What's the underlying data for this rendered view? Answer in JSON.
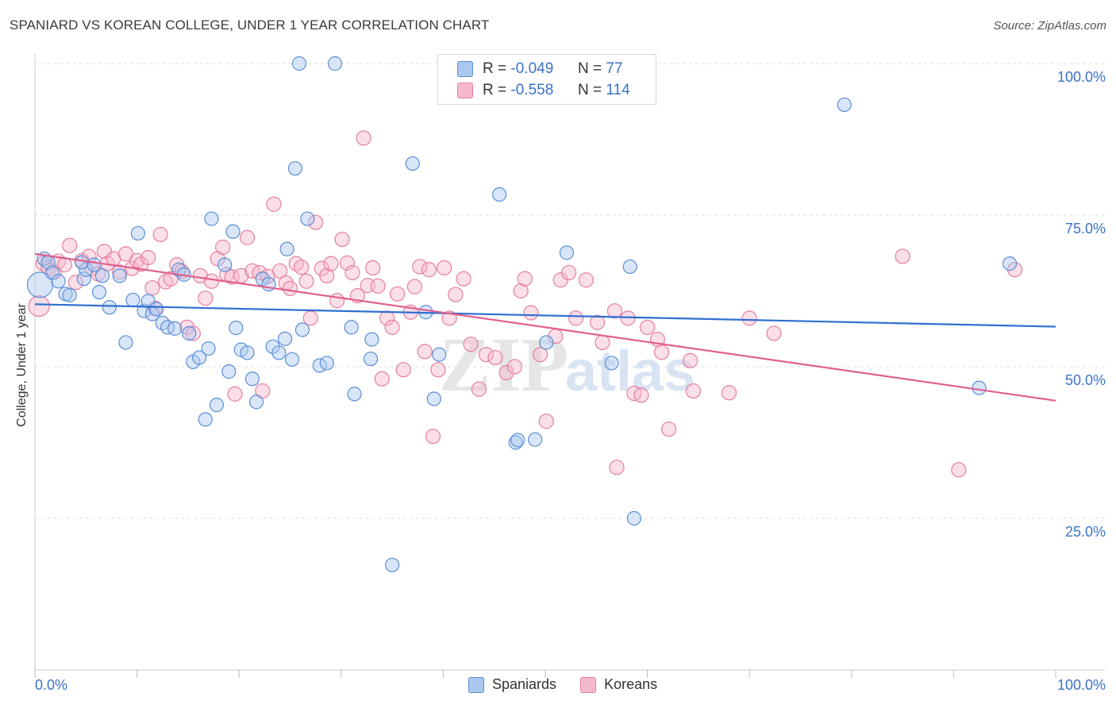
{
  "title": "SPANIARD VS KOREAN COLLEGE, UNDER 1 YEAR CORRELATION CHART",
  "source": "Source: ZipAtlas.com",
  "watermark": "ZIPatlas",
  "legend": {
    "rows": [
      {
        "r_label": "R =",
        "r_value": "-0.049",
        "n_label": "N =",
        "n_value": "77"
      },
      {
        "r_label": "R =",
        "r_value": "-0.558",
        "n_label": "N =",
        "n_value": "114"
      }
    ]
  },
  "bottom_legend": [
    "Spaniards",
    "Koreans"
  ],
  "colors": {
    "spaniards_fill": "#aac8ef",
    "spaniards_stroke": "#5a8fd6",
    "spaniards_line": "#2f6fd0",
    "koreans_fill": "#f6b8cc",
    "koreans_stroke": "#e57ea0",
    "koreans_line": "#e0608e",
    "tick_label": "#3b72c8",
    "grid": "#dddddd"
  },
  "chart_data": {
    "type": "scatter",
    "title": "SPANIARD VS KOREAN COLLEGE, UNDER 1 YEAR CORRELATION CHART",
    "xlabel": "",
    "ylabel": "College, Under 1 year",
    "xlim": [
      0,
      100
    ],
    "ylim": [
      0,
      100
    ],
    "x_tick_labels": [
      "0.0%",
      "100.0%"
    ],
    "y_tick_labels": [
      "25.0%",
      "50.0%",
      "75.0%",
      "100.0%"
    ],
    "y_ticks": [
      25,
      50,
      75,
      100
    ],
    "grid": "horizontal-dashed",
    "legend_position": "top-center",
    "series": [
      {
        "name": "Spaniards",
        "R": -0.049,
        "N": 77,
        "trend": {
          "x": [
            0,
            100
          ],
          "y": [
            60.3,
            56.6
          ]
        },
        "points": [
          [
            0.5,
            63.5
          ],
          [
            0.9,
            67.8
          ],
          [
            1.3,
            67.2
          ],
          [
            1.7,
            65.5
          ],
          [
            2.3,
            64.1
          ],
          [
            3.0,
            62.0
          ],
          [
            3.4,
            61.8
          ],
          [
            4.8,
            64.5
          ],
          [
            5.0,
            66.0
          ],
          [
            4.6,
            67.2
          ],
          [
            5.8,
            66.8
          ],
          [
            6.6,
            65.0
          ],
          [
            6.3,
            62.3
          ],
          [
            7.3,
            59.8
          ],
          [
            8.3,
            65.0
          ],
          [
            8.9,
            54.0
          ],
          [
            9.6,
            61.0
          ],
          [
            10.1,
            72.0
          ],
          [
            10.7,
            59.2
          ],
          [
            11.1,
            60.8
          ],
          [
            11.5,
            58.7
          ],
          [
            11.9,
            59.5
          ],
          [
            12.5,
            57.2
          ],
          [
            13.0,
            56.5
          ],
          [
            13.7,
            56.3
          ],
          [
            14.1,
            66.0
          ],
          [
            14.6,
            65.2
          ],
          [
            15.1,
            55.5
          ],
          [
            15.5,
            50.8
          ],
          [
            16.1,
            51.5
          ],
          [
            16.7,
            41.3
          ],
          [
            17.0,
            53.0
          ],
          [
            17.3,
            74.4
          ],
          [
            17.8,
            43.7
          ],
          [
            18.6,
            66.8
          ],
          [
            19.0,
            49.2
          ],
          [
            19.4,
            72.3
          ],
          [
            19.7,
            56.4
          ],
          [
            20.2,
            52.8
          ],
          [
            20.8,
            52.3
          ],
          [
            21.3,
            48.0
          ],
          [
            21.7,
            44.2
          ],
          [
            22.3,
            64.5
          ],
          [
            22.9,
            63.6
          ],
          [
            23.3,
            53.3
          ],
          [
            23.9,
            52.3
          ],
          [
            24.5,
            54.6
          ],
          [
            24.7,
            69.4
          ],
          [
            25.2,
            51.2
          ],
          [
            25.5,
            82.7
          ],
          [
            25.9,
            100.0
          ],
          [
            26.2,
            56.1
          ],
          [
            26.7,
            74.4
          ],
          [
            27.9,
            50.2
          ],
          [
            28.6,
            50.6
          ],
          [
            29.4,
            100.0
          ],
          [
            31.0,
            56.5
          ],
          [
            31.3,
            45.5
          ],
          [
            33.0,
            54.5
          ],
          [
            32.9,
            51.3
          ],
          [
            35.0,
            17.3
          ],
          [
            37.0,
            83.5
          ],
          [
            38.3,
            59.0
          ],
          [
            39.1,
            44.7
          ],
          [
            39.6,
            52.0
          ],
          [
            45.5,
            78.4
          ],
          [
            47.1,
            37.5
          ],
          [
            47.3,
            37.9
          ],
          [
            49.0,
            38.0
          ],
          [
            50.1,
            54.0
          ],
          [
            52.1,
            68.8
          ],
          [
            56.5,
            50.6
          ],
          [
            58.3,
            66.5
          ],
          [
            58.7,
            25.0
          ],
          [
            79.3,
            93.2
          ],
          [
            92.5,
            46.5
          ],
          [
            95.5,
            67.0
          ]
        ]
      },
      {
        "name": "Koreans",
        "R": -0.558,
        "N": 114,
        "trend": {
          "x": [
            0,
            100
          ],
          "y": [
            68.6,
            44.4
          ]
        },
        "points": [
          [
            0.4,
            60.0
          ],
          [
            0.8,
            67.0
          ],
          [
            1.3,
            66.3
          ],
          [
            1.9,
            65.6
          ],
          [
            2.3,
            67.4
          ],
          [
            2.9,
            66.8
          ],
          [
            3.4,
            70.0
          ],
          [
            4.0,
            63.9
          ],
          [
            4.6,
            67.5
          ],
          [
            5.3,
            68.2
          ],
          [
            5.6,
            66.2
          ],
          [
            6.2,
            65.3
          ],
          [
            6.8,
            69.0
          ],
          [
            7.1,
            67.0
          ],
          [
            7.7,
            67.8
          ],
          [
            8.3,
            65.6
          ],
          [
            8.9,
            68.6
          ],
          [
            9.5,
            66.2
          ],
          [
            10.0,
            67.5
          ],
          [
            10.4,
            66.9
          ],
          [
            11.1,
            68.0
          ],
          [
            11.5,
            63.0
          ],
          [
            11.8,
            59.6
          ],
          [
            12.3,
            71.8
          ],
          [
            12.8,
            64.0
          ],
          [
            13.3,
            64.5
          ],
          [
            13.9,
            66.8
          ],
          [
            14.4,
            65.7
          ],
          [
            14.9,
            56.5
          ],
          [
            15.5,
            55.5
          ],
          [
            16.2,
            65.0
          ],
          [
            16.7,
            61.3
          ],
          [
            17.3,
            64.1
          ],
          [
            17.9,
            67.8
          ],
          [
            18.4,
            69.7
          ],
          [
            18.8,
            65.2
          ],
          [
            19.3,
            64.8
          ],
          [
            19.6,
            45.5
          ],
          [
            20.2,
            65.0
          ],
          [
            20.8,
            71.3
          ],
          [
            21.3,
            65.8
          ],
          [
            22.0,
            65.5
          ],
          [
            22.3,
            46.0
          ],
          [
            22.8,
            64.9
          ],
          [
            23.4,
            76.8
          ],
          [
            24.0,
            65.8
          ],
          [
            24.6,
            63.8
          ],
          [
            25.0,
            62.9
          ],
          [
            25.6,
            67.0
          ],
          [
            26.1,
            66.4
          ],
          [
            26.6,
            64.1
          ],
          [
            27.0,
            58.0
          ],
          [
            27.5,
            73.8
          ],
          [
            28.1,
            66.2
          ],
          [
            28.6,
            65.0
          ],
          [
            29.0,
            67.0
          ],
          [
            29.6,
            60.9
          ],
          [
            30.1,
            71.0
          ],
          [
            30.6,
            67.1
          ],
          [
            31.1,
            65.5
          ],
          [
            31.6,
            61.7
          ],
          [
            32.2,
            87.7
          ],
          [
            32.6,
            63.4
          ],
          [
            33.1,
            66.3
          ],
          [
            33.6,
            63.3
          ],
          [
            34.0,
            48.0
          ],
          [
            34.5,
            58.0
          ],
          [
            35.0,
            56.5
          ],
          [
            35.5,
            62.0
          ],
          [
            36.1,
            49.5
          ],
          [
            36.8,
            59.0
          ],
          [
            37.2,
            63.2
          ],
          [
            37.7,
            66.5
          ],
          [
            38.2,
            52.5
          ],
          [
            38.6,
            66.0
          ],
          [
            39.0,
            38.5
          ],
          [
            39.5,
            49.5
          ],
          [
            40.1,
            66.3
          ],
          [
            40.6,
            58.0
          ],
          [
            41.2,
            61.9
          ],
          [
            42.0,
            64.5
          ],
          [
            42.7,
            53.7
          ],
          [
            43.5,
            46.3
          ],
          [
            44.2,
            52.0
          ],
          [
            45.1,
            51.5
          ],
          [
            46.2,
            49.0
          ],
          [
            47.0,
            50.0
          ],
          [
            47.6,
            62.5
          ],
          [
            48.0,
            64.5
          ],
          [
            48.6,
            58.9
          ],
          [
            49.5,
            52.0
          ],
          [
            50.1,
            41.0
          ],
          [
            51.0,
            55.0
          ],
          [
            51.5,
            64.3
          ],
          [
            52.3,
            65.5
          ],
          [
            53.0,
            58.0
          ],
          [
            54.0,
            64.3
          ],
          [
            55.1,
            57.3
          ],
          [
            55.6,
            54.0
          ],
          [
            56.8,
            59.2
          ],
          [
            57.0,
            33.4
          ],
          [
            58.1,
            58.0
          ],
          [
            58.7,
            45.6
          ],
          [
            59.4,
            45.3
          ],
          [
            60.0,
            56.5
          ],
          [
            61.0,
            54.5
          ],
          [
            61.4,
            52.4
          ],
          [
            62.1,
            39.7
          ],
          [
            64.2,
            51.0
          ],
          [
            64.5,
            46.0
          ],
          [
            68.0,
            45.7
          ],
          [
            70.0,
            58.0
          ],
          [
            72.4,
            55.5
          ],
          [
            85.0,
            68.2
          ],
          [
            90.5,
            33.0
          ],
          [
            96.0,
            66.0
          ]
        ]
      }
    ]
  }
}
